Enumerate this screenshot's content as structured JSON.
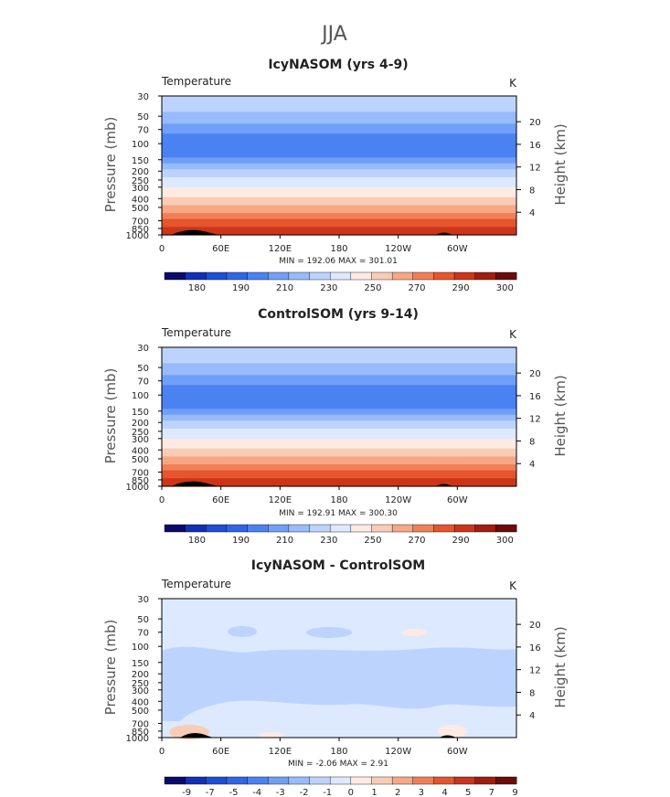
{
  "figure": {
    "title": "JJA"
  },
  "chart_data": [
    {
      "type": "heatmap",
      "title": "IcyNASOM (yrs 4-9)",
      "variable_label": "Temperature",
      "units": "K",
      "xlabel": "",
      "ylabel": "Pressure (mb)",
      "ylabel_right": "Height (km)",
      "x_ticks": [
        "0",
        "60E",
        "120E",
        "180",
        "120W",
        "60W"
      ],
      "x_tick_values": [
        0,
        60,
        120,
        180,
        240,
        300
      ],
      "xlim": [
        0,
        360
      ],
      "y_ticks": [
        "30",
        "50",
        "70",
        "100",
        "150",
        "200",
        "250",
        "300",
        "400",
        "500",
        "700",
        "850",
        "1000"
      ],
      "y_tick_values": [
        30,
        50,
        70,
        100,
        150,
        200,
        250,
        300,
        400,
        500,
        700,
        850,
        1000
      ],
      "ylim": [
        1000,
        30
      ],
      "y_scale": "log",
      "right_ticks": [
        "4",
        "8",
        "12",
        "16",
        "20"
      ],
      "right_tick_values": [
        4,
        8,
        12,
        16,
        20
      ],
      "stats_text": "MIN = 192.06   MAX = 301.01",
      "min": 192.06,
      "max": 301.01,
      "colorbar": {
        "labels": [
          "180",
          "190",
          "210",
          "230",
          "250",
          "270",
          "290",
          "300"
        ],
        "colors": [
          "#0a0a6e",
          "#1030b8",
          "#1c4ed8",
          "#2f66e8",
          "#4a82f2",
          "#6f9ff8",
          "#97bbfb",
          "#bcd4fd",
          "#dde9ff",
          "#fdeae2",
          "#f9ccb6",
          "#f6a785",
          "#f17f56",
          "#e6552d",
          "#cd3519",
          "#a21c10",
          "#6e0a0a"
        ]
      },
      "profile": {
        "pressure_mb": [
          30,
          50,
          70,
          100,
          150,
          200,
          250,
          300,
          400,
          500,
          700,
          850,
          1000
        ],
        "temperature_K": [
          215,
          209,
          202,
          196,
          201,
          212,
          222,
          229,
          242,
          253,
          273,
          282,
          289
        ]
      }
    },
    {
      "type": "heatmap",
      "title": "ControlSOM (yrs 9-14)",
      "variable_label": "Temperature",
      "units": "K",
      "xlabel": "",
      "ylabel": "Pressure (mb)",
      "ylabel_right": "Height (km)",
      "x_ticks": [
        "0",
        "60E",
        "120E",
        "180",
        "120W",
        "60W"
      ],
      "x_tick_values": [
        0,
        60,
        120,
        180,
        240,
        300
      ],
      "xlim": [
        0,
        360
      ],
      "y_ticks": [
        "30",
        "50",
        "70",
        "100",
        "150",
        "200",
        "250",
        "300",
        "400",
        "500",
        "700",
        "850",
        "1000"
      ],
      "y_tick_values": [
        30,
        50,
        70,
        100,
        150,
        200,
        250,
        300,
        400,
        500,
        700,
        850,
        1000
      ],
      "ylim": [
        1000,
        30
      ],
      "y_scale": "log",
      "right_ticks": [
        "4",
        "8",
        "12",
        "16",
        "20"
      ],
      "right_tick_values": [
        4,
        8,
        12,
        16,
        20
      ],
      "stats_text": "MIN = 192.91   MAX = 300.30",
      "min": 192.91,
      "max": 300.3,
      "colorbar": {
        "labels": [
          "180",
          "190",
          "210",
          "230",
          "250",
          "270",
          "290",
          "300"
        ],
        "colors": [
          "#0a0a6e",
          "#1030b8",
          "#1c4ed8",
          "#2f66e8",
          "#4a82f2",
          "#6f9ff8",
          "#97bbfb",
          "#bcd4fd",
          "#dde9ff",
          "#fdeae2",
          "#f9ccb6",
          "#f6a785",
          "#f17f56",
          "#e6552d",
          "#cd3519",
          "#a21c10",
          "#6e0a0a"
        ]
      },
      "profile": {
        "pressure_mb": [
          30,
          50,
          70,
          100,
          150,
          200,
          250,
          300,
          400,
          500,
          700,
          850,
          1000
        ],
        "temperature_K": [
          215,
          209,
          202,
          196,
          201,
          212,
          222,
          229,
          242,
          253,
          273,
          282,
          289
        ]
      }
    },
    {
      "type": "heatmap",
      "title": "IcyNASOM - ControlSOM",
      "variable_label": "Temperature",
      "units": "K",
      "xlabel": "",
      "ylabel": "Pressure (mb)",
      "ylabel_right": "Height (km)",
      "x_ticks": [
        "0",
        "60E",
        "120E",
        "180",
        "120W",
        "60W"
      ],
      "x_tick_values": [
        0,
        60,
        120,
        180,
        240,
        300
      ],
      "xlim": [
        0,
        360
      ],
      "y_ticks": [
        "30",
        "50",
        "70",
        "100",
        "150",
        "200",
        "250",
        "300",
        "400",
        "500",
        "700",
        "850",
        "1000"
      ],
      "y_tick_values": [
        30,
        50,
        70,
        100,
        150,
        200,
        250,
        300,
        400,
        500,
        700,
        850,
        1000
      ],
      "ylim": [
        1000,
        30
      ],
      "y_scale": "log",
      "right_ticks": [
        "4",
        "8",
        "12",
        "16",
        "20"
      ],
      "right_tick_values": [
        4,
        8,
        12,
        16,
        20
      ],
      "stats_text": "MIN =   -2.06   MAX =    2.91",
      "min": -2.06,
      "max": 2.91,
      "colorbar": {
        "labels": [
          "-9",
          "-7",
          "-5",
          "-4",
          "-3",
          "-2",
          "-1",
          "0",
          "1",
          "2",
          "3",
          "4",
          "5",
          "7",
          "9"
        ],
        "colors": [
          "#0a0a6e",
          "#1030b8",
          "#1c4ed8",
          "#2f66e8",
          "#4a82f2",
          "#6f9ff8",
          "#97bbfb",
          "#bcd4fd",
          "#dde9ff",
          "#fdeae2",
          "#f9ccb6",
          "#f6a785",
          "#f17f56",
          "#e6552d",
          "#cd3519",
          "#a21c10",
          "#6e0a0a"
        ]
      },
      "background_color": "#dde9ff",
      "negative_color": "#bcd4fd",
      "positive_colors": [
        "#fdeae2",
        "#f9ccb6"
      ]
    }
  ]
}
